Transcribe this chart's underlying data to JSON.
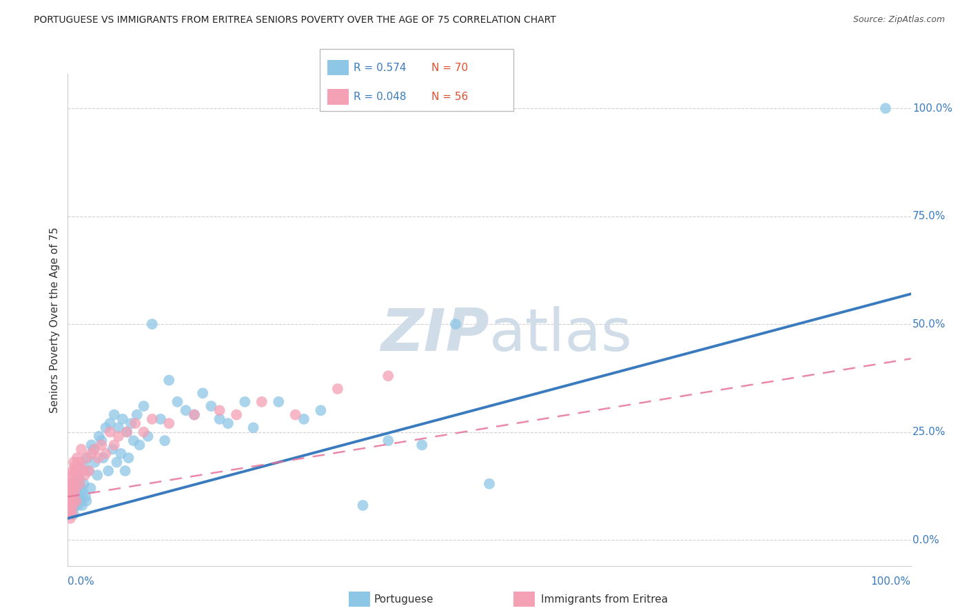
{
  "title": "PORTUGUESE VS IMMIGRANTS FROM ERITREA SENIORS POVERTY OVER THE AGE OF 75 CORRELATION CHART",
  "source": "Source: ZipAtlas.com",
  "ylabel": "Seniors Poverty Over the Age of 75",
  "legend_r1": "R = 0.574",
  "legend_n1": "N = 70",
  "legend_r2": "R = 0.048",
  "legend_n2": "N = 56",
  "legend_label1": "Portuguese",
  "legend_label2": "Immigrants from Eritrea",
  "blue_color": "#8ec6e6",
  "pink_color": "#f4a0b5",
  "blue_line_color": "#3a7bbf",
  "pink_line_color": "#e8739a",
  "title_color": "#222222",
  "source_color": "#555555",
  "axis_label_color": "#333333",
  "tick_color_right": "#3a7bbf",
  "tick_color_bottom": "#3a7bbf",
  "grid_color": "#cccccc",
  "watermark_color": "#d0dde8",
  "blue_scatter_x": [
    0.003,
    0.005,
    0.006,
    0.007,
    0.008,
    0.009,
    0.01,
    0.01,
    0.011,
    0.012,
    0.013,
    0.014,
    0.015,
    0.016,
    0.017,
    0.018,
    0.019,
    0.02,
    0.021,
    0.022,
    0.023,
    0.025,
    0.027,
    0.028,
    0.03,
    0.032,
    0.035,
    0.037,
    0.04,
    0.042,
    0.045,
    0.048,
    0.05,
    0.053,
    0.055,
    0.058,
    0.06,
    0.063,
    0.065,
    0.068,
    0.07,
    0.072,
    0.075,
    0.078,
    0.082,
    0.085,
    0.09,
    0.095,
    0.1,
    0.11,
    0.115,
    0.12,
    0.13,
    0.14,
    0.15,
    0.16,
    0.17,
    0.18,
    0.19,
    0.21,
    0.22,
    0.25,
    0.28,
    0.3,
    0.35,
    0.38,
    0.42,
    0.46,
    0.5,
    0.97
  ],
  "blue_scatter_y": [
    0.1,
    0.07,
    0.13,
    0.06,
    0.11,
    0.08,
    0.12,
    0.09,
    0.15,
    0.08,
    0.1,
    0.14,
    0.09,
    0.12,
    0.08,
    0.11,
    0.13,
    0.17,
    0.1,
    0.09,
    0.19,
    0.16,
    0.12,
    0.22,
    0.21,
    0.18,
    0.15,
    0.24,
    0.23,
    0.19,
    0.26,
    0.16,
    0.27,
    0.21,
    0.29,
    0.18,
    0.26,
    0.2,
    0.28,
    0.16,
    0.25,
    0.19,
    0.27,
    0.23,
    0.29,
    0.22,
    0.31,
    0.24,
    0.5,
    0.28,
    0.23,
    0.37,
    0.32,
    0.3,
    0.29,
    0.34,
    0.31,
    0.28,
    0.27,
    0.32,
    0.26,
    0.32,
    0.28,
    0.3,
    0.08,
    0.23,
    0.22,
    0.5,
    0.13,
    1.0
  ],
  "pink_scatter_x": [
    0.001,
    0.001,
    0.002,
    0.002,
    0.002,
    0.003,
    0.003,
    0.003,
    0.004,
    0.004,
    0.004,
    0.005,
    0.005,
    0.005,
    0.006,
    0.006,
    0.006,
    0.007,
    0.007,
    0.007,
    0.008,
    0.008,
    0.009,
    0.009,
    0.01,
    0.01,
    0.011,
    0.012,
    0.013,
    0.014,
    0.015,
    0.016,
    0.018,
    0.02,
    0.022,
    0.025,
    0.028,
    0.032,
    0.036,
    0.04,
    0.045,
    0.05,
    0.055,
    0.06,
    0.07,
    0.08,
    0.09,
    0.1,
    0.12,
    0.15,
    0.18,
    0.2,
    0.23,
    0.27,
    0.32,
    0.38
  ],
  "pink_scatter_y": [
    0.07,
    0.1,
    0.06,
    0.08,
    0.12,
    0.05,
    0.09,
    0.13,
    0.07,
    0.1,
    0.14,
    0.06,
    0.11,
    0.15,
    0.08,
    0.12,
    0.16,
    0.09,
    0.13,
    0.18,
    0.11,
    0.17,
    0.12,
    0.16,
    0.09,
    0.14,
    0.19,
    0.15,
    0.18,
    0.13,
    0.17,
    0.21,
    0.16,
    0.15,
    0.19,
    0.16,
    0.2,
    0.21,
    0.19,
    0.22,
    0.2,
    0.25,
    0.22,
    0.24,
    0.25,
    0.27,
    0.25,
    0.28,
    0.27,
    0.29,
    0.3,
    0.29,
    0.32,
    0.29,
    0.35,
    0.38
  ],
  "blue_line_x": [
    0.0,
    1.0
  ],
  "blue_line_y": [
    0.05,
    0.57
  ],
  "pink_line_x": [
    0.0,
    1.0
  ],
  "pink_line_y": [
    0.1,
    0.42
  ],
  "xlim": [
    0.0,
    1.0
  ],
  "ylim": [
    -0.06,
    1.08
  ],
  "hgrid_vals": [
    0.0,
    0.25,
    0.5,
    0.75,
    1.0
  ],
  "right_ytick_vals": [
    0.0,
    0.25,
    0.5,
    0.75,
    1.0
  ],
  "right_ytick_labels": [
    "0.0%",
    "25.0%",
    "50.0%",
    "75.0%",
    "100.0%"
  ]
}
